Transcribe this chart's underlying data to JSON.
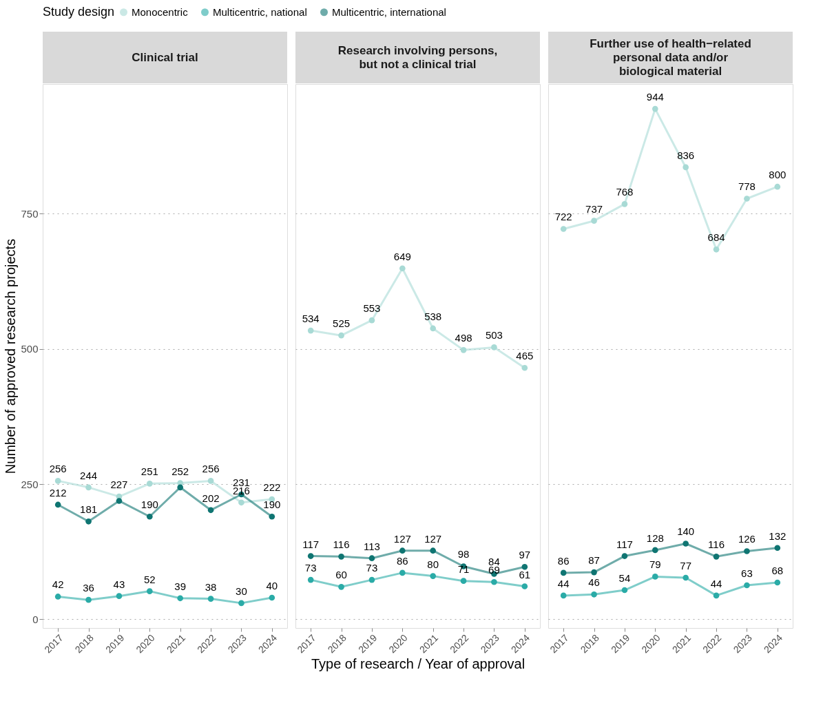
{
  "chart_data": [
    {
      "type": "line",
      "title": "Clinical trial",
      "ylabel": "Number of approved research projects",
      "legend_title": "Study design",
      "legend": "top",
      "marker": "circle",
      "line_style": "solid",
      "grid": "y",
      "ylim": [
        -16,
        990
      ],
      "yticks": [
        0,
        250,
        500,
        750
      ],
      "categories": [
        "2017",
        "2018",
        "2019",
        "2020",
        "2021",
        "2022",
        "2023",
        "2024"
      ],
      "series": [
        {
          "name": "Monocentric",
          "color": "#a8dad5",
          "values": [
            256,
            244,
            227,
            251,
            252,
            256,
            216,
            222
          ],
          "value_labels": [
            "256",
            "244",
            "227",
            "251",
            "252",
            "256",
            "216",
            "222"
          ]
        },
        {
          "name": "Multicentric, national",
          "color": "#2aaba7",
          "values": [
            42,
            36,
            43,
            52,
            39,
            38,
            30,
            40
          ],
          "value_labels": [
            "42",
            "36",
            "43",
            "52",
            "39",
            "38",
            "30",
            "40"
          ]
        },
        {
          "name": "Multicentric, international",
          "color": "#0f7572",
          "values": [
            212,
            181,
            219,
            190,
            244,
            202,
            231,
            190
          ],
          "value_labels": [
            "212",
            "181",
            null,
            "190",
            null,
            "202",
            "231",
            "190"
          ]
        }
      ]
    },
    {
      "type": "line",
      "title": "Research involving persons,\nbut not a clinical trial",
      "xlabel": "Type of research / Year of approval",
      "marker": "circle",
      "line_style": "solid",
      "grid": "y",
      "tick_labels": "x",
      "ylim": [
        -16,
        990
      ],
      "yticks": [
        0,
        250,
        500,
        750
      ],
      "categories": [
        "2017",
        "2018",
        "2019",
        "2020",
        "2021",
        "2022",
        "2023",
        "2024"
      ],
      "series": [
        {
          "name": "Monocentric",
          "color": "#a8dad5",
          "values": [
            534,
            525,
            553,
            649,
            538,
            498,
            503,
            465
          ],
          "value_labels": [
            "534",
            "525",
            "553",
            "649",
            "538",
            "498",
            "503",
            "465"
          ]
        },
        {
          "name": "Multicentric, national",
          "color": "#2aaba7",
          "values": [
            73,
            60,
            73,
            86,
            80,
            71,
            69,
            61
          ],
          "value_labels": [
            "73",
            "60",
            "73",
            "86",
            "80",
            "71",
            "69",
            "61"
          ]
        },
        {
          "name": "Multicentric, international",
          "color": "#0f7572",
          "values": [
            117,
            116,
            113,
            127,
            127,
            98,
            84,
            97
          ],
          "value_labels": [
            "117",
            "116",
            "113",
            "127",
            "127",
            "98",
            "84",
            "97"
          ]
        }
      ]
    },
    {
      "type": "line",
      "title": "Further use of health−related\npersonal data and/or\nbiological material",
      "marker": "circle",
      "line_style": "solid",
      "grid": "y",
      "tick_labels": "x",
      "ylim": [
        -16,
        990
      ],
      "yticks": [
        0,
        250,
        500,
        750
      ],
      "categories": [
        "2017",
        "2018",
        "2019",
        "2020",
        "2021",
        "2022",
        "2023",
        "2024"
      ],
      "series": [
        {
          "name": "Monocentric",
          "color": "#a8dad5",
          "values": [
            722,
            737,
            768,
            944,
            836,
            684,
            778,
            800
          ],
          "value_labels": [
            "722",
            "737",
            "768",
            "944",
            "836",
            "684",
            "778",
            "800"
          ]
        },
        {
          "name": "Multicentric, national",
          "color": "#2aaba7",
          "values": [
            44,
            46,
            54,
            79,
            77,
            44,
            63,
            68
          ],
          "value_labels": [
            "44",
            "46",
            "54",
            "79",
            "77",
            "44",
            "63",
            "68"
          ]
        },
        {
          "name": "Multicentric, international",
          "color": "#0f7572",
          "values": [
            86,
            87,
            117,
            128,
            140,
            116,
            126,
            132
          ],
          "value_labels": [
            "86",
            "87",
            "117",
            "128",
            "140",
            "116",
            "126",
            "132"
          ]
        }
      ]
    }
  ]
}
